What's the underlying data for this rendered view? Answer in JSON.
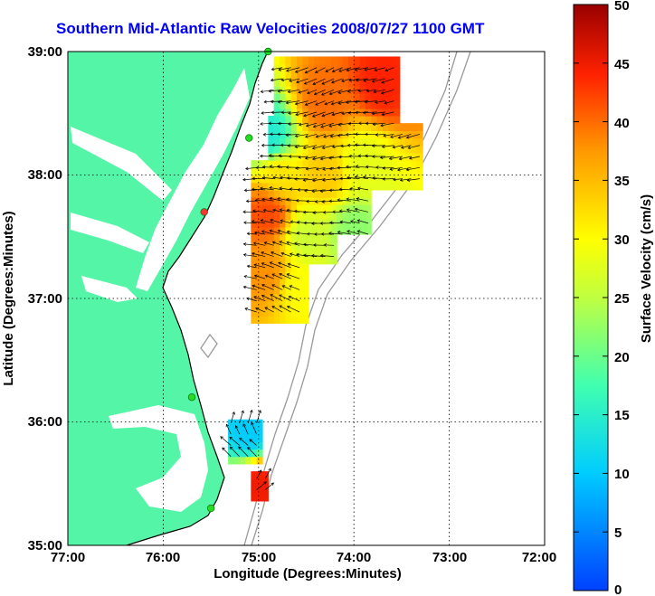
{
  "title": "Southern Mid-Atlantic Raw Velocities 2008/07/27 1100 GMT",
  "x_axis": {
    "label": "Longitude (Degrees:Minutes)",
    "ticks": [
      "77:00",
      "76:00",
      "75:00",
      "74:00",
      "73:00",
      "72:00"
    ]
  },
  "y_axis": {
    "label": "Latitude (Degrees:Minutes)",
    "ticks": [
      "39:00",
      "38:00",
      "37:00",
      "36:00",
      "35:00"
    ]
  },
  "colorbar": {
    "label": "Surface Velocity (cm/s)",
    "ticks": [
      "50",
      "45",
      "40",
      "35",
      "30",
      "25",
      "20",
      "15",
      "10",
      "5",
      "0"
    ]
  },
  "colors": {
    "land": "#55f5a8",
    "title": "#0000ff",
    "station": "#22dd22",
    "station_highlight": "#ff3333",
    "bathymetry": "#999999"
  },
  "chart_data": {
    "type": "heatmap",
    "title": "Southern Mid-Atlantic Raw Velocities 2008/07/27 1100 GMT",
    "xlabel": "Longitude (Degrees:Minutes)",
    "ylabel": "Latitude (Degrees:Minutes)",
    "xlim": [
      -77,
      -72
    ],
    "ylim": [
      35,
      39
    ],
    "clim": [
      0,
      50
    ],
    "colorbar_label": "Surface Velocity (cm/s)",
    "grid": true,
    "velocity_regions": [
      {
        "lon": -74.3,
        "lat": 38.6,
        "speed": 40
      },
      {
        "lon": -73.7,
        "lat": 38.75,
        "speed": 44
      },
      {
        "lon": -74.9,
        "lat": 38.3,
        "speed": 14
      },
      {
        "lon": -74.8,
        "lat": 38.0,
        "speed": 32
      },
      {
        "lon": -74.3,
        "lat": 38.0,
        "speed": 34
      },
      {
        "lon": -73.9,
        "lat": 38.1,
        "speed": 28
      },
      {
        "lon": -74.9,
        "lat": 37.7,
        "speed": 42
      },
      {
        "lon": -74.5,
        "lat": 37.5,
        "speed": 26
      },
      {
        "lon": -74.0,
        "lat": 37.55,
        "speed": 22
      },
      {
        "lon": -74.9,
        "lat": 37.2,
        "speed": 38
      },
      {
        "lon": -74.6,
        "lat": 37.1,
        "speed": 30
      },
      {
        "lon": -75.1,
        "lat": 35.9,
        "speed": 10
      },
      {
        "lon": -75.0,
        "lat": 35.5,
        "speed": 45
      }
    ],
    "stations": [
      {
        "lon": -74.9,
        "lat": 39.0,
        "highlight": false
      },
      {
        "lon": -75.1,
        "lat": 38.3,
        "highlight": false
      },
      {
        "lon": -75.57,
        "lat": 37.7,
        "highlight": true
      },
      {
        "lon": -75.7,
        "lat": 36.2,
        "highlight": false
      },
      {
        "lon": -75.5,
        "lat": 35.3,
        "highlight": false
      }
    ]
  }
}
